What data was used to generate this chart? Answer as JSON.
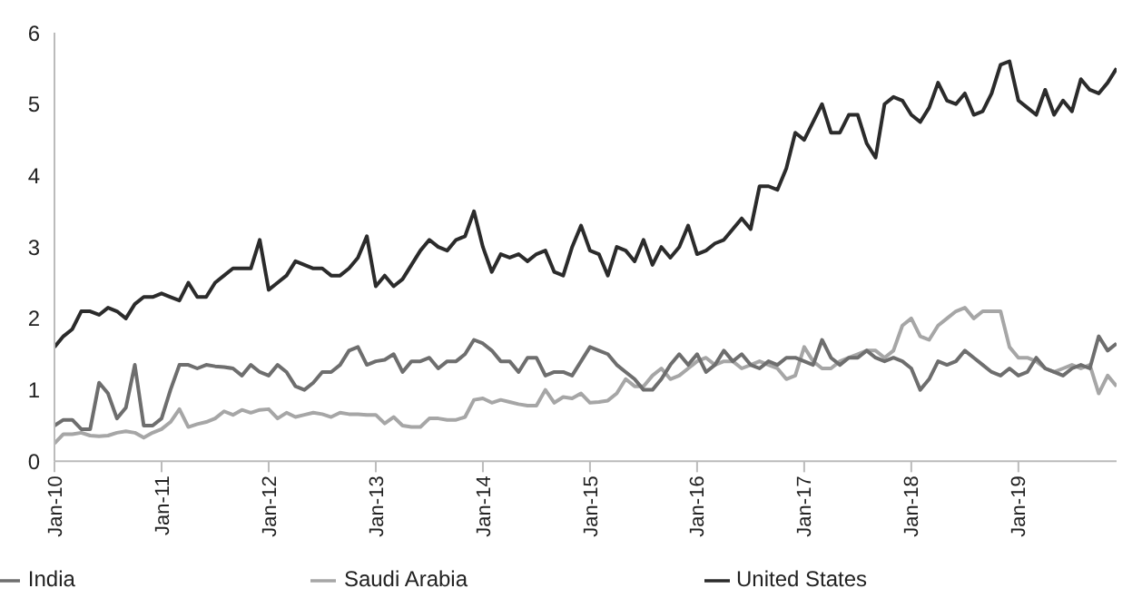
{
  "chart_data": {
    "type": "line",
    "categories": [
      "Jan-10",
      null,
      null,
      null,
      null,
      null,
      null,
      null,
      null,
      null,
      null,
      null,
      "Jan-11",
      null,
      null,
      null,
      null,
      null,
      null,
      null,
      null,
      null,
      null,
      null,
      "Jan-12",
      null,
      null,
      null,
      null,
      null,
      null,
      null,
      null,
      null,
      null,
      null,
      "Jan-13",
      null,
      null,
      null,
      null,
      null,
      null,
      null,
      null,
      null,
      null,
      null,
      "Jan-14",
      null,
      null,
      null,
      null,
      null,
      null,
      null,
      null,
      null,
      null,
      null,
      "Jan-15",
      null,
      null,
      null,
      null,
      null,
      null,
      null,
      null,
      null,
      null,
      null,
      "Jan-16",
      null,
      null,
      null,
      null,
      null,
      null,
      null,
      null,
      null,
      null,
      null,
      "Jan-17",
      null,
      null,
      null,
      null,
      null,
      null,
      null,
      null,
      null,
      null,
      null,
      "Jan-18",
      null,
      null,
      null,
      null,
      null,
      null,
      null,
      null,
      null,
      null,
      null,
      "Jan-19",
      null,
      null,
      null,
      null,
      null,
      null,
      null,
      null,
      null,
      null,
      null
    ],
    "series": [
      {
        "name": "United States",
        "color": "#2b2b2b",
        "values": [
          1.6,
          1.75,
          1.85,
          2.1,
          2.1,
          2.05,
          2.15,
          2.1,
          2.0,
          2.2,
          2.3,
          2.3,
          2.35,
          2.3,
          2.25,
          2.5,
          2.3,
          2.3,
          2.5,
          2.6,
          2.7,
          2.7,
          2.7,
          3.1,
          2.4,
          2.5,
          2.6,
          2.8,
          2.75,
          2.7,
          2.7,
          2.6,
          2.6,
          2.7,
          2.85,
          3.15,
          2.45,
          2.6,
          2.45,
          2.55,
          2.75,
          2.95,
          3.1,
          3.0,
          2.95,
          3.1,
          3.15,
          3.5,
          3.0,
          2.65,
          2.9,
          2.85,
          2.9,
          2.8,
          2.9,
          2.95,
          2.65,
          2.6,
          3.0,
          3.3,
          2.95,
          2.9,
          2.6,
          3.0,
          2.95,
          2.8,
          3.1,
          2.75,
          3.0,
          2.85,
          3.0,
          3.3,
          2.9,
          2.95,
          3.05,
          3.1,
          3.25,
          3.4,
          3.25,
          3.85,
          3.85,
          3.8,
          4.1,
          4.6,
          4.5,
          4.75,
          5.0,
          4.6,
          4.6,
          4.85,
          4.85,
          4.45,
          4.25,
          5.0,
          5.1,
          5.05,
          4.85,
          4.75,
          4.95,
          5.3,
          5.05,
          5.0,
          5.15,
          4.85,
          4.9,
          5.15,
          5.55,
          5.6,
          5.05,
          4.95,
          4.85,
          5.2,
          4.85,
          5.05,
          4.9,
          5.35,
          5.2,
          5.15,
          5.3,
          5.5
        ]
      },
      {
        "name": "Saudi Arabia",
        "color": "#a6a6a6",
        "values": [
          0.25,
          0.38,
          0.38,
          0.4,
          0.36,
          0.35,
          0.36,
          0.4,
          0.42,
          0.4,
          0.33,
          0.4,
          0.45,
          0.55,
          0.73,
          0.48,
          0.52,
          0.55,
          0.6,
          0.7,
          0.65,
          0.72,
          0.68,
          0.72,
          0.73,
          0.6,
          0.68,
          0.62,
          0.65,
          0.68,
          0.66,
          0.62,
          0.68,
          0.66,
          0.66,
          0.65,
          0.65,
          0.53,
          0.62,
          0.5,
          0.48,
          0.48,
          0.6,
          0.6,
          0.58,
          0.58,
          0.62,
          0.86,
          0.88,
          0.82,
          0.86,
          0.83,
          0.8,
          0.78,
          0.78,
          1.0,
          0.82,
          0.9,
          0.88,
          0.95,
          0.82,
          0.83,
          0.85,
          0.95,
          1.15,
          1.05,
          1.05,
          1.2,
          1.3,
          1.15,
          1.2,
          1.3,
          1.4,
          1.45,
          1.35,
          1.4,
          1.4,
          1.3,
          1.35,
          1.4,
          1.35,
          1.3,
          1.15,
          1.2,
          1.6,
          1.4,
          1.3,
          1.3,
          1.4,
          1.45,
          1.5,
          1.55,
          1.55,
          1.45,
          1.55,
          1.9,
          2.0,
          1.75,
          1.7,
          1.9,
          2.0,
          2.1,
          2.15,
          2.0,
          2.1,
          2.1,
          2.1,
          1.6,
          1.45,
          1.45,
          1.4,
          1.3,
          1.25,
          1.3,
          1.35,
          1.3,
          1.35,
          0.95,
          1.2,
          1.05
        ]
      },
      {
        "name": "India",
        "color": "#6e6e6e",
        "values": [
          0.5,
          0.58,
          0.58,
          0.45,
          0.45,
          1.1,
          0.95,
          0.6,
          0.75,
          1.35,
          0.5,
          0.5,
          0.6,
          1.0,
          1.35,
          1.35,
          1.3,
          1.35,
          1.33,
          1.32,
          1.3,
          1.2,
          1.35,
          1.25,
          1.2,
          1.35,
          1.25,
          1.05,
          1.0,
          1.1,
          1.25,
          1.25,
          1.35,
          1.55,
          1.6,
          1.35,
          1.4,
          1.42,
          1.5,
          1.25,
          1.4,
          1.4,
          1.45,
          1.3,
          1.4,
          1.4,
          1.5,
          1.7,
          1.65,
          1.55,
          1.4,
          1.4,
          1.25,
          1.45,
          1.45,
          1.2,
          1.25,
          1.25,
          1.2,
          1.4,
          1.6,
          1.55,
          1.5,
          1.35,
          1.25,
          1.15,
          1.0,
          1.0,
          1.15,
          1.35,
          1.5,
          1.35,
          1.5,
          1.25,
          1.35,
          1.55,
          1.4,
          1.5,
          1.35,
          1.3,
          1.4,
          1.35,
          1.45,
          1.45,
          1.4,
          1.35,
          1.7,
          1.45,
          1.35,
          1.45,
          1.45,
          1.55,
          1.45,
          1.4,
          1.45,
          1.4,
          1.3,
          1.0,
          1.15,
          1.4,
          1.35,
          1.4,
          1.55,
          1.45,
          1.35,
          1.25,
          1.2,
          1.3,
          1.2,
          1.25,
          1.45,
          1.3,
          1.25,
          1.2,
          1.3,
          1.35,
          1.3,
          1.75,
          1.55,
          1.65
        ]
      }
    ],
    "ylim": [
      0,
      6
    ],
    "yticks": [
      0,
      1,
      2,
      3,
      4,
      5,
      6
    ],
    "grid": false,
    "legend": "bottom",
    "marker": "none",
    "line_style": "solid"
  }
}
